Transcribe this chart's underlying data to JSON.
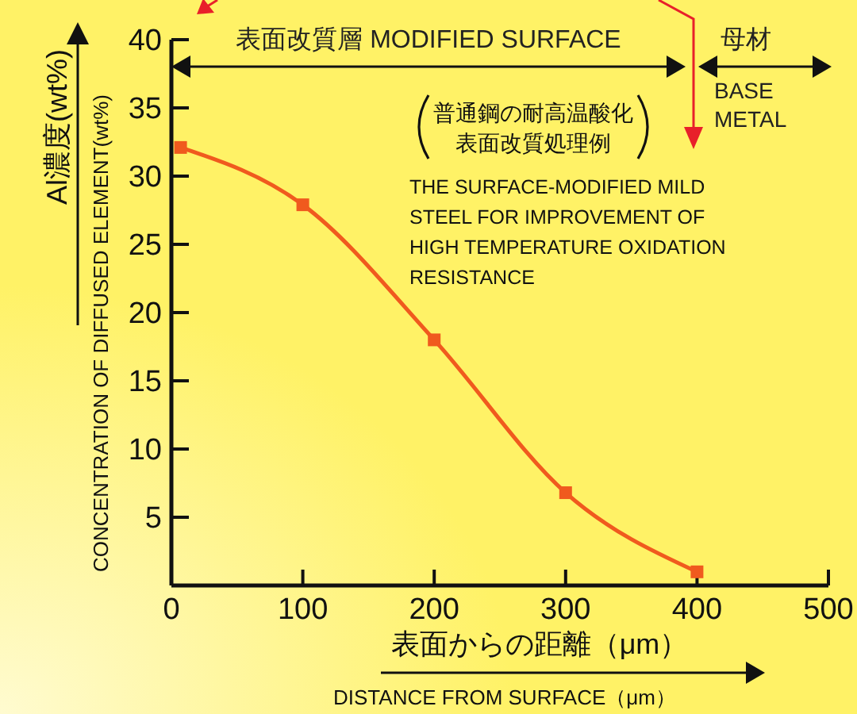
{
  "chart_data": {
    "type": "line",
    "xlabel": "表面からの距離（μm）",
    "ylabel": "Al濃度(wt%)",
    "x": [
      7,
      100,
      200,
      300,
      400
    ],
    "series": [
      {
        "color": "#f05a1e",
        "values": [
          32.1,
          27.9,
          18,
          6.8,
          1
        ]
      }
    ],
    "xlim": [
      0,
      500
    ],
    "xticks": [
      0,
      100,
      200,
      300,
      400,
      500
    ],
    "ylim": [
      0,
      40
    ],
    "yticks": [
      5,
      10,
      15,
      20,
      25,
      30,
      35,
      40
    ],
    "marker": "square",
    "line_style": "solid",
    "annotations": [
      "CONCENTRATION OF DIFFUSED ELEMENT(wt%)",
      "DISTANCE FROM SURFACE（μm）",
      "表面改質層 MODIFIED SURFACE",
      "母材",
      "BASE\nMETAL",
      "普通鋼の耐高温酸化",
      "表面改質処理例",
      "THE SURFACE-MODIFIED MILD\nSTEEL FOR IMPROVEMENT OF\nHIGH TEMPERATURE OXIDATION\nRESISTANCE"
    ]
  }
}
